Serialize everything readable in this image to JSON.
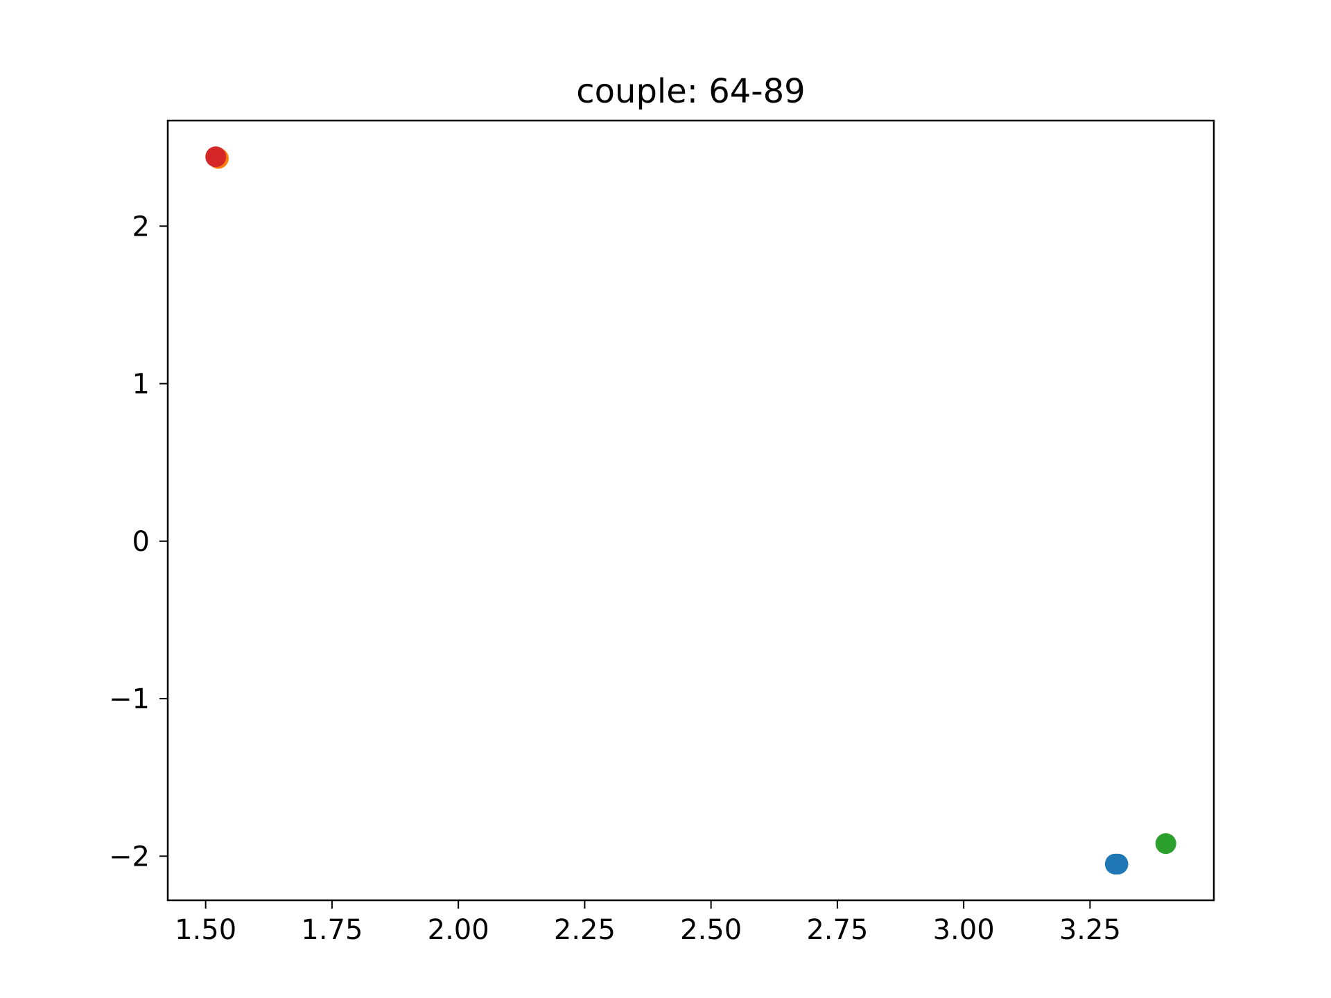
{
  "chart_data": {
    "type": "scatter",
    "title": "couple: 64-89",
    "xlabel": "",
    "ylabel": "",
    "xlim": [
      1.425,
      3.495
    ],
    "ylim": [
      -2.28,
      2.67
    ],
    "x_ticks": [
      1.5,
      1.75,
      2.0,
      2.25,
      2.5,
      2.75,
      3.0,
      3.25
    ],
    "x_tick_labels": [
      "1.50",
      "1.75",
      "2.00",
      "2.25",
      "2.50",
      "2.75",
      "3.00",
      "3.25"
    ],
    "y_ticks": [
      -2,
      -1,
      0,
      1,
      2
    ],
    "y_tick_labels": [
      "−2",
      "−1",
      "0",
      "1",
      "2"
    ],
    "grid": false,
    "series": [
      {
        "color": "#1f77b4",
        "points": [
          {
            "x": 3.305,
            "y": -2.05
          },
          {
            "x": 3.3,
            "y": -2.05
          }
        ]
      },
      {
        "color": "#ff7f0e",
        "points": [
          {
            "x": 1.525,
            "y": 2.43
          }
        ]
      },
      {
        "color": "#2ca02c",
        "points": [
          {
            "x": 3.4,
            "y": -1.92
          }
        ]
      },
      {
        "color": "#d62728",
        "points": [
          {
            "x": 1.52,
            "y": 2.44
          }
        ]
      }
    ]
  }
}
